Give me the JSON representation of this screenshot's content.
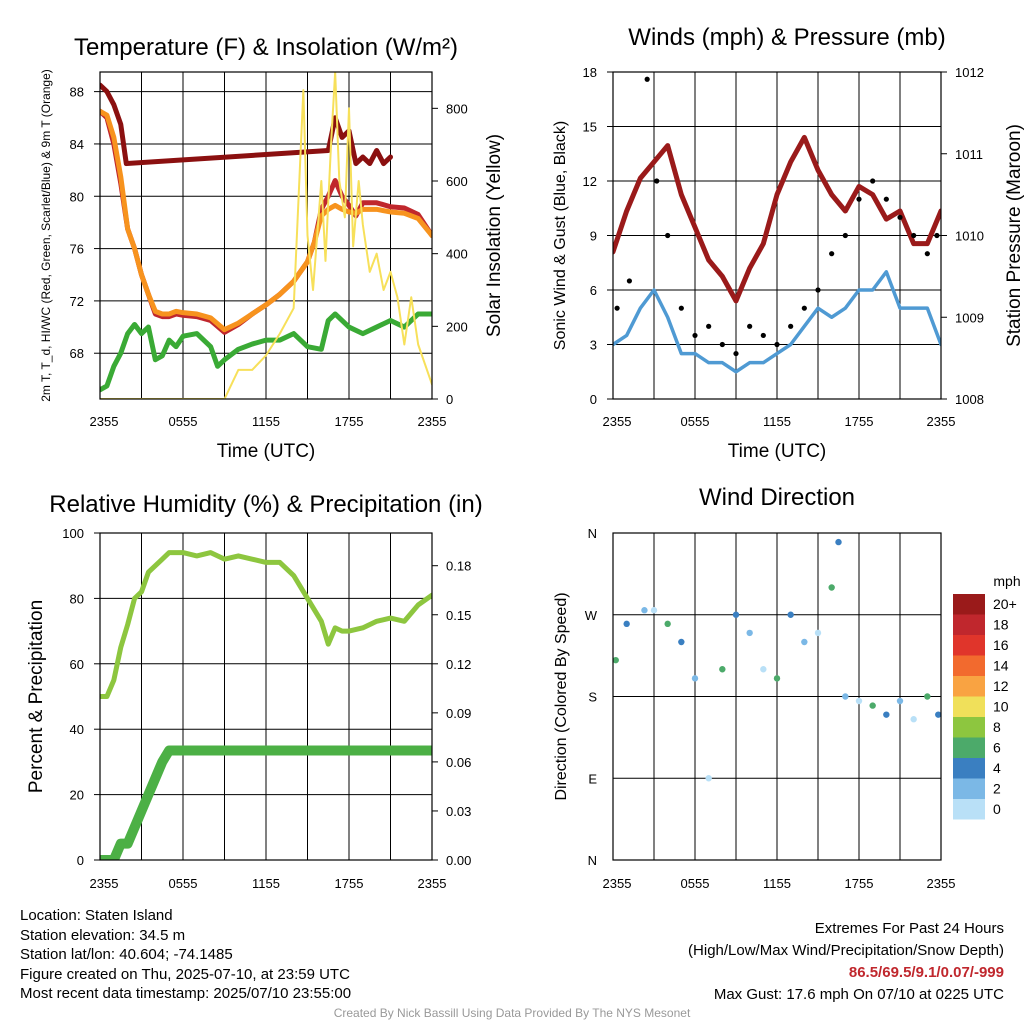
{
  "chart_data": [
    {
      "type": "line",
      "title": "Temperature (F) & Insolation (W/m²)",
      "xlabel": "Time (UTC)",
      "ylabel_left": "2m T, T_d, HI/WC (Red, Green, Scarlet/Blue) & 9m T (Orange)",
      "ylabel_right": "Solar Insolation (Yellow)",
      "x_ticks": [
        "2355",
        "0555",
        "1155",
        "1755",
        "2355"
      ],
      "ylim_left": [
        64.5,
        89.5
      ],
      "yticks_left": [
        68,
        72,
        76,
        80,
        84,
        88
      ],
      "ylim_right": [
        0,
        900
      ],
      "yticks_right": [
        0,
        200,
        400,
        600,
        800
      ],
      "grid": true,
      "series": [
        {
          "name": "2m T",
          "color": "#c0272d",
          "axis": "left",
          "x": [
            0,
            0.5,
            1,
            1.5,
            2,
            2.5,
            3,
            3.5,
            4,
            4.5,
            5,
            5.5,
            6,
            7,
            8,
            9,
            10,
            11,
            12,
            13,
            14,
            15,
            15.5,
            16,
            16.5,
            17,
            17.5,
            18,
            18.5,
            19,
            20,
            21,
            22,
            23,
            24
          ],
          "y": [
            86.5,
            86,
            84,
            81,
            77.5,
            76,
            74,
            72.5,
            71,
            70.8,
            70.8,
            71,
            70.9,
            70.8,
            70.5,
            69.6,
            70.2,
            71,
            71.7,
            72.5,
            73.5,
            75,
            76.5,
            79,
            80,
            81.2,
            80,
            79.3,
            78.5,
            79.5,
            79.5,
            79.2,
            79.1,
            78.6,
            77
          ]
        },
        {
          "name": "9m T",
          "color": "#f7931e",
          "axis": "left",
          "x": [
            0,
            0.5,
            1,
            1.5,
            2,
            2.5,
            3,
            3.5,
            4,
            4.5,
            5,
            5.5,
            6,
            7,
            8,
            9,
            10,
            11,
            12,
            13,
            14,
            15,
            15.5,
            16,
            16.5,
            17,
            17.5,
            18,
            18.5,
            19,
            20,
            21,
            22,
            23,
            24
          ],
          "y": [
            86.5,
            86.2,
            84.5,
            81.5,
            77.5,
            76,
            74,
            72.5,
            71.2,
            71,
            71,
            71.2,
            71.1,
            71,
            70.7,
            69.8,
            70.3,
            71,
            71.7,
            72.5,
            73.5,
            75,
            76.5,
            78.5,
            79,
            79.3,
            79,
            78.8,
            78.7,
            79,
            79,
            78.8,
            78.7,
            78.3,
            77
          ]
        },
        {
          "name": "Heat Index",
          "color": "#8b1010",
          "axis": "left",
          "x": [
            0,
            0.5,
            1,
            1.5,
            1.9,
            16.5,
            17,
            17.5,
            18,
            18.5,
            19,
            19.5,
            20,
            20.5,
            21
          ],
          "y": [
            88.5,
            88,
            87,
            85.5,
            82.5,
            83.5,
            86,
            84.5,
            85,
            82.5,
            83,
            82.5,
            83.5,
            82.5,
            83
          ]
        },
        {
          "name": "2m T_d",
          "color": "#3aaa35",
          "axis": "left",
          "x": [
            0,
            0.5,
            1,
            1.5,
            2,
            2.5,
            3,
            3.5,
            4,
            4.5,
            5,
            5.5,
            6,
            7,
            8,
            8.5,
            9,
            10,
            11,
            12,
            13,
            14,
            15,
            16,
            16.5,
            17,
            18,
            19,
            20,
            21,
            22,
            23,
            24
          ],
          "y": [
            65.2,
            65.5,
            67,
            68,
            69.5,
            70.2,
            69.5,
            70,
            67.5,
            67.8,
            69,
            68.5,
            69.3,
            69.5,
            68.5,
            67,
            67.5,
            68.3,
            68.7,
            69,
            69,
            69.5,
            68.5,
            68.3,
            70.5,
            71,
            70,
            69.5,
            70,
            70.5,
            70,
            71,
            71
          ]
        },
        {
          "name": "Solar Insolation",
          "color": "#f7e05a",
          "axis": "right",
          "x": [
            0,
            9,
            10,
            11,
            12,
            13,
            14,
            14.7,
            15,
            15.4,
            16,
            16.3,
            16.7,
            17,
            17.3,
            17.7,
            18,
            18.3,
            18.7,
            19,
            19.5,
            20,
            20.5,
            21,
            21.5,
            22,
            22.5,
            23,
            24
          ],
          "y": [
            0,
            0,
            80,
            80,
            120,
            180,
            250,
            850,
            450,
            300,
            600,
            380,
            700,
            900,
            600,
            500,
            800,
            420,
            600,
            480,
            350,
            400,
            300,
            350,
            280,
            150,
            280,
            150,
            40
          ]
        }
      ]
    },
    {
      "type": "scatter",
      "title": "Winds (mph) & Pressure (mb)",
      "xlabel": "Time (UTC)",
      "ylabel_left": "Sonic Wind & Gust (Blue, Black)",
      "ylabel_right": "Station Pressure (Maroon)",
      "x_ticks": [
        "2355",
        "0555",
        "1155",
        "1755",
        "2355"
      ],
      "ylim_left": [
        0,
        18
      ],
      "yticks_left": [
        0,
        3,
        6,
        9,
        12,
        15,
        18
      ],
      "ylim_right": [
        1008,
        1012
      ],
      "yticks_right": [
        1008,
        1009,
        1010,
        1011,
        1012
      ],
      "grid": true,
      "series": [
        {
          "name": "Station Pressure",
          "color": "#9a1a1a",
          "axis": "right",
          "x": [
            0,
            1,
            2,
            3,
            4,
            5,
            6,
            7,
            8,
            9,
            10,
            11,
            12,
            13,
            14,
            15,
            16,
            17,
            18,
            19,
            20,
            21,
            22,
            23,
            24
          ],
          "y": [
            1009.8,
            1010.3,
            1010.7,
            1010.9,
            1011.1,
            1010.5,
            1010.1,
            1009.7,
            1009.5,
            1009.2,
            1009.6,
            1009.9,
            1010.5,
            1010.9,
            1011.2,
            1010.8,
            1010.5,
            1010.3,
            1010.6,
            1010.5,
            1010.2,
            1010.3,
            1009.9,
            1009.9,
            1010.3
          ]
        },
        {
          "name": "Sonic Wind",
          "color": "#4f9ad3",
          "axis": "left",
          "x": [
            0,
            1,
            2,
            3,
            4,
            5,
            6,
            7,
            8,
            9,
            10,
            11,
            12,
            13,
            14,
            15,
            16,
            17,
            18,
            19,
            20,
            21,
            22,
            23,
            24
          ],
          "y": [
            3,
            3.5,
            5,
            6,
            4.5,
            2.5,
            2.5,
            2,
            2,
            1.5,
            2,
            2,
            2.5,
            3,
            4,
            5,
            4.5,
            5,
            6,
            6,
            7,
            5,
            5,
            5,
            3
          ]
        },
        {
          "name": "Gust",
          "color": "#000000",
          "axis": "left",
          "x": [
            0.3,
            1.2,
            2.5,
            3.2,
            4,
            5,
            6,
            7,
            8,
            9,
            10,
            11,
            12,
            13,
            14,
            15,
            16,
            17,
            18,
            19,
            20,
            21,
            22,
            23,
            23.7
          ],
          "y": [
            5,
            6.5,
            17.6,
            12,
            9,
            5,
            3.5,
            4,
            3,
            2.5,
            4,
            3.5,
            3,
            4,
            5,
            6,
            8,
            9,
            11,
            12,
            11,
            10,
            9,
            8,
            9
          ]
        }
      ]
    },
    {
      "type": "line",
      "title": "Relative Humidity (%) & Precipitation (in)",
      "xlabel": "",
      "ylabel_left": "Percent & Precipitation",
      "ylabel_right": "",
      "x_ticks": [
        "2355",
        "0555",
        "1155",
        "1755",
        "2355"
      ],
      "ylim_left": [
        0,
        100
      ],
      "yticks_left": [
        0,
        20,
        40,
        60,
        80,
        100
      ],
      "ylim_right": [
        0,
        0.2
      ],
      "yticks_right": [
        "0.00",
        "0.03",
        "0.06",
        "0.09",
        "0.12",
        "0.15",
        "0.18"
      ],
      "grid": true,
      "series": [
        {
          "name": "Relative Humidity",
          "color": "#8dc63f",
          "axis": "left",
          "x": [
            0,
            0.5,
            1,
            1.5,
            2,
            2.5,
            3,
            3.5,
            4,
            4.5,
            5,
            6,
            7,
            8,
            9,
            10,
            11,
            12,
            13,
            14,
            15,
            16,
            16.5,
            17,
            17.5,
            18,
            19,
            20,
            21,
            22,
            23,
            24
          ],
          "y": [
            50,
            50,
            55,
            65,
            72,
            80,
            82,
            88,
            90,
            92,
            94,
            94,
            93,
            94,
            92,
            93,
            92,
            91,
            91,
            87,
            80,
            73,
            66,
            71,
            70,
            70,
            71,
            73,
            74,
            73,
            78,
            81
          ]
        },
        {
          "name": "Precipitation",
          "color": "#4cb045",
          "axis": "right",
          "x": [
            0,
            1,
            1.5,
            2,
            2.5,
            3,
            3.5,
            4,
            4.5,
            5,
            24
          ],
          "y": [
            0,
            0,
            0.01,
            0.01,
            0.02,
            0.03,
            0.04,
            0.05,
            0.06,
            0.067,
            0.067
          ]
        }
      ]
    },
    {
      "type": "scatter",
      "title": "Wind Direction",
      "xlabel": "",
      "ylabel": "Direction (Colored By Speed)",
      "x_ticks": [
        "2355",
        "0555",
        "1155",
        "1755",
        "2355"
      ],
      "y_ticks": [
        "N",
        "E",
        "S",
        "W",
        "N"
      ],
      "colorbar_title": "mph",
      "colorbar_labels": [
        "20+",
        "18",
        "16",
        "14",
        "12",
        "10",
        "8",
        "6",
        "4",
        "2",
        "0"
      ],
      "colorbar_colors": [
        "#9a1a1a",
        "#c0272d",
        "#e0352b",
        "#f26a2e",
        "#f9a342",
        "#f0e05a",
        "#8dc63f",
        "#4caa6a",
        "#3a7fc1",
        "#7bb8e6",
        "#b9e0f7"
      ],
      "grid": true,
      "series": [
        {
          "name": "Direction",
          "color": "#3a7fc1",
          "x": [
            0.2,
            1,
            2.3,
            3,
            4,
            5,
            6,
            7,
            8,
            9,
            10,
            11,
            12,
            13,
            14,
            15,
            16,
            16.5,
            17,
            18,
            19,
            20,
            21,
            22,
            23,
            23.8
          ],
          "y": [
            220,
            260,
            275,
            275,
            260,
            240,
            200,
            90,
            210,
            270,
            250,
            210,
            200,
            270,
            240,
            250,
            300,
            350,
            180,
            175,
            170,
            160,
            175,
            155,
            180,
            160
          ]
        }
      ]
    }
  ],
  "info_left": {
    "location": "Location: Staten Island",
    "elevation": "Station elevation: 34.5 m",
    "latlon": "Station lat/lon: 40.604; -74.1485",
    "created": "Figure created on Thu, 2025-07-10, at 23:59 UTC",
    "recent": "Most recent data timestamp: 2025/07/10 23:55:00"
  },
  "info_right": {
    "line1": "Extremes For Past 24 Hours",
    "line2": "(High/Low/Max Wind/Precipitation/Snow Depth)",
    "values": "86.5/69.5/9.1/0.07/-999",
    "gust": "Max Gust: 17.6 mph On 07/10 at 0225 UTC"
  },
  "credit": "Created By Nick Bassill Using Data Provided By The NYS Mesonet"
}
